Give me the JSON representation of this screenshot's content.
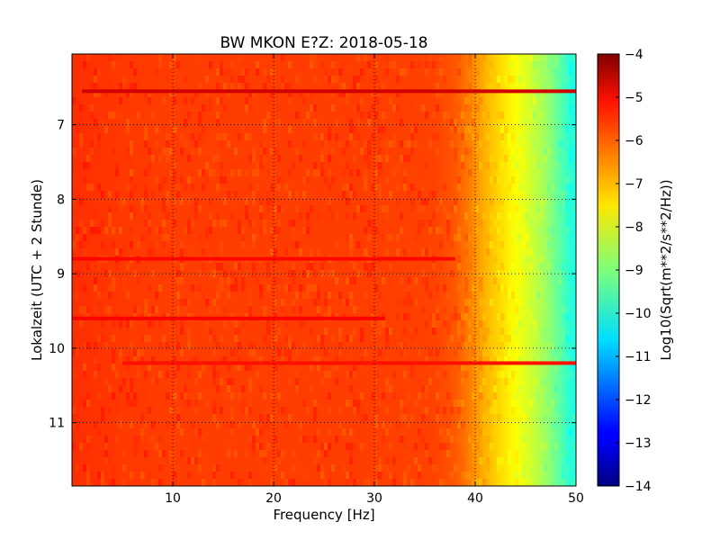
{
  "chart_data": {
    "type": "heatmap",
    "title": "BW MKON E?Z: 2018-05-18",
    "xlabel": "Frequency [Hz]",
    "ylabel": "Lokalzeit (UTC + 2 Stunde)",
    "colorbar_label": "Log10(Sqrt(m**2/s**2/Hz))",
    "xlim": [
      0,
      50
    ],
    "ylim_top_to_bottom": [
      6.05,
      11.85
    ],
    "clim": [
      -14,
      -4
    ],
    "colormap": "jet",
    "grid": true,
    "x_ticks": [
      10,
      20,
      30,
      40,
      50
    ],
    "x_tick_labels": [
      "10",
      "20",
      "30",
      "40",
      "50"
    ],
    "y_ticks": [
      7,
      8,
      9,
      10,
      11
    ],
    "y_tick_labels": [
      "7",
      "8",
      "9",
      "10",
      "11"
    ],
    "colorbar_ticks": [
      -4,
      -5,
      -6,
      -7,
      -8,
      -9,
      -10,
      -11,
      -12,
      -13,
      -14
    ],
    "colorbar_tick_labels": [
      "−4",
      "−5",
      "−6",
      "−7",
      "−8",
      "−9",
      "−10",
      "−11",
      "−12",
      "−13",
      "−14"
    ],
    "frequency_profile": {
      "frequency_hz": [
        0,
        5,
        10,
        20,
        30,
        36,
        38,
        39.5,
        41,
        42.5,
        44,
        45.5,
        47,
        48.5,
        49.5,
        50
      ],
      "log10_amplitude": [
        -5.7,
        -5.8,
        -5.85,
        -5.85,
        -5.85,
        -5.9,
        -6.1,
        -6.5,
        -7.0,
        -7.4,
        -7.8,
        -8.2,
        -8.7,
        -9.4,
        -9.9,
        -10.0
      ]
    },
    "high_energy_bands": [
      {
        "time": 6.55,
        "f_min": 1,
        "f_max": 50,
        "log10_amplitude": -4.8
      },
      {
        "time": 8.8,
        "f_min": 0,
        "f_max": 38,
        "log10_amplitude": -5.3
      },
      {
        "time": 9.6,
        "f_min": 0,
        "f_max": 31,
        "log10_amplitude": -5.2
      },
      {
        "time": 10.2,
        "f_min": 5,
        "f_max": 50,
        "log10_amplitude": -5.4
      }
    ]
  }
}
